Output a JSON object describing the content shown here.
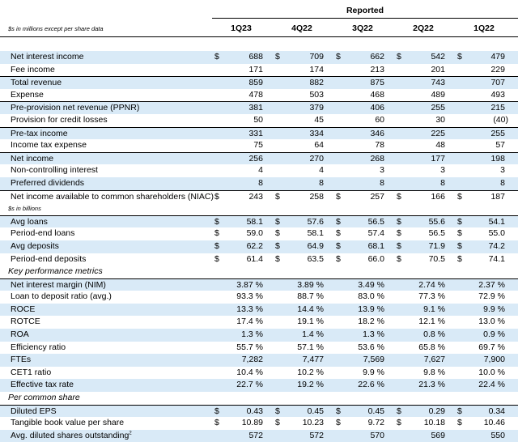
{
  "header": {
    "reported": "Reported",
    "units_note": "$s in millions except per share data",
    "periods": [
      "1Q23",
      "4Q22",
      "3Q22",
      "2Q22",
      "1Q22"
    ]
  },
  "rows": [
    {
      "label": "Net interest income",
      "values": [
        "688",
        "709",
        "662",
        "542",
        "479"
      ],
      "dollar": true,
      "shade": true,
      "border": false
    },
    {
      "label": "Fee income",
      "values": [
        "171",
        "174",
        "213",
        "201",
        "229"
      ],
      "dollar": false,
      "shade": false,
      "border": false
    },
    {
      "label": "Total revenue",
      "values": [
        "859",
        "882",
        "875",
        "743",
        "707"
      ],
      "dollar": false,
      "shade": true,
      "border": true
    },
    {
      "label": "Expense",
      "values": [
        "478",
        "503",
        "468",
        "489",
        "493"
      ],
      "dollar": false,
      "shade": false,
      "border": false
    },
    {
      "label": "Pre-provision net revenue (PPNR)",
      "values": [
        "381",
        "379",
        "406",
        "255",
        "215"
      ],
      "dollar": false,
      "shade": true,
      "border": true
    },
    {
      "label": "Provision for credit losses",
      "values": [
        "50",
        "45",
        "60",
        "30",
        "(40)"
      ],
      "dollar": false,
      "shade": false,
      "border": false
    },
    {
      "label": "Pre-tax income",
      "values": [
        "331",
        "334",
        "346",
        "225",
        "255"
      ],
      "dollar": false,
      "shade": true,
      "border": true
    },
    {
      "label": "Income tax expense",
      "values": [
        "75",
        "64",
        "78",
        "48",
        "57"
      ],
      "dollar": false,
      "shade": false,
      "border": false
    },
    {
      "label": "Net income",
      "values": [
        "256",
        "270",
        "268",
        "177",
        "198"
      ],
      "dollar": false,
      "shade": true,
      "border": true
    },
    {
      "label": "Non-controlling interest",
      "values": [
        "4",
        "4",
        "3",
        "3",
        "3"
      ],
      "dollar": false,
      "shade": false,
      "border": false
    },
    {
      "label": "Preferred dividends",
      "values": [
        "8",
        "8",
        "8",
        "8",
        "8"
      ],
      "dollar": false,
      "shade": true,
      "border": false
    },
    {
      "label": "Net income available to common shareholders (NIAC)",
      "values": [
        "243",
        "258",
        "257",
        "166",
        "187"
      ],
      "dollar": true,
      "shade": false,
      "border": true
    },
    {
      "label": "$s in billions",
      "section": true,
      "small": true,
      "values": [],
      "shade": false,
      "border": false
    },
    {
      "label": "Avg loans",
      "values": [
        "58.1",
        "57.6",
        "56.5",
        "55.6",
        "54.1"
      ],
      "dollar": true,
      "shade": true,
      "border": true
    },
    {
      "label": "Period-end loans",
      "values": [
        "59.0",
        "58.1",
        "57.4",
        "56.5",
        "55.0"
      ],
      "dollar": true,
      "shade": false,
      "border": false
    },
    {
      "label": "Avg deposits",
      "values": [
        "62.2",
        "64.9",
        "68.1",
        "71.9",
        "74.2"
      ],
      "dollar": true,
      "shade": true,
      "border": false
    },
    {
      "label": "Period-end deposits",
      "values": [
        "61.4",
        "63.5",
        "66.0",
        "70.5",
        "74.1"
      ],
      "dollar": true,
      "shade": false,
      "border": false
    },
    {
      "label": "Key performance metrics",
      "section": true,
      "values": [],
      "shade": false,
      "border": false
    },
    {
      "label": "Net interest margin (NIM)",
      "values": [
        "3.87 %",
        "3.89 %",
        "3.49 %",
        "2.74 %",
        "2.37 %"
      ],
      "dollar": false,
      "shade": true,
      "border": true
    },
    {
      "label": "Loan to deposit ratio (avg.)",
      "values": [
        "93.3 %",
        "88.7 %",
        "83.0 %",
        "77.3 %",
        "72.9 %"
      ],
      "dollar": false,
      "shade": false,
      "border": false
    },
    {
      "label": "ROCE",
      "values": [
        "13.3 %",
        "14.4 %",
        "13.9 %",
        "9.1 %",
        "9.9 %"
      ],
      "dollar": false,
      "shade": true,
      "border": false
    },
    {
      "label": "ROTCE",
      "values": [
        "17.4 %",
        "19.1 %",
        "18.2 %",
        "12.1 %",
        "13.0 %"
      ],
      "dollar": false,
      "shade": false,
      "border": false
    },
    {
      "label": "ROA",
      "values": [
        "1.3 %",
        "1.4 %",
        "1.3 %",
        "0.8 %",
        "0.9 %"
      ],
      "dollar": false,
      "shade": true,
      "border": false
    },
    {
      "label": "Efficiency ratio",
      "values": [
        "55.7 %",
        "57.1 %",
        "53.6 %",
        "65.8 %",
        "69.7 %"
      ],
      "dollar": false,
      "shade": false,
      "border": false
    },
    {
      "label": "FTEs",
      "values": [
        "7,282",
        "7,477",
        "7,569",
        "7,627",
        "7,900"
      ],
      "dollar": false,
      "shade": true,
      "border": false
    },
    {
      "label": "CET1 ratio",
      "values": [
        "10.4 %",
        "10.2 %",
        "9.9 %",
        "9.8 %",
        "10.0 %"
      ],
      "dollar": false,
      "shade": false,
      "border": false
    },
    {
      "label": "Effective tax rate",
      "values": [
        "22.7 %",
        "19.2 %",
        "22.6 %",
        "21.3 %",
        "22.4 %"
      ],
      "dollar": false,
      "shade": true,
      "border": false
    },
    {
      "label": "Per common share",
      "section": true,
      "values": [],
      "shade": false,
      "border": false
    },
    {
      "label": "Diluted EPS",
      "values": [
        "0.43",
        "0.45",
        "0.45",
        "0.29",
        "0.34"
      ],
      "dollar": true,
      "shade": true,
      "border": true
    },
    {
      "label": "Tangible book value per share",
      "values": [
        "10.89",
        "10.23",
        "9.72",
        "10.18",
        "10.46"
      ],
      "dollar": true,
      "shade": false,
      "border": false
    },
    {
      "label": "Avg. diluted shares outstanding",
      "sup": "2",
      "values": [
        "572",
        "572",
        "570",
        "569",
        "550"
      ],
      "dollar": false,
      "shade": true,
      "border": false
    }
  ],
  "currency_symbol": "$"
}
